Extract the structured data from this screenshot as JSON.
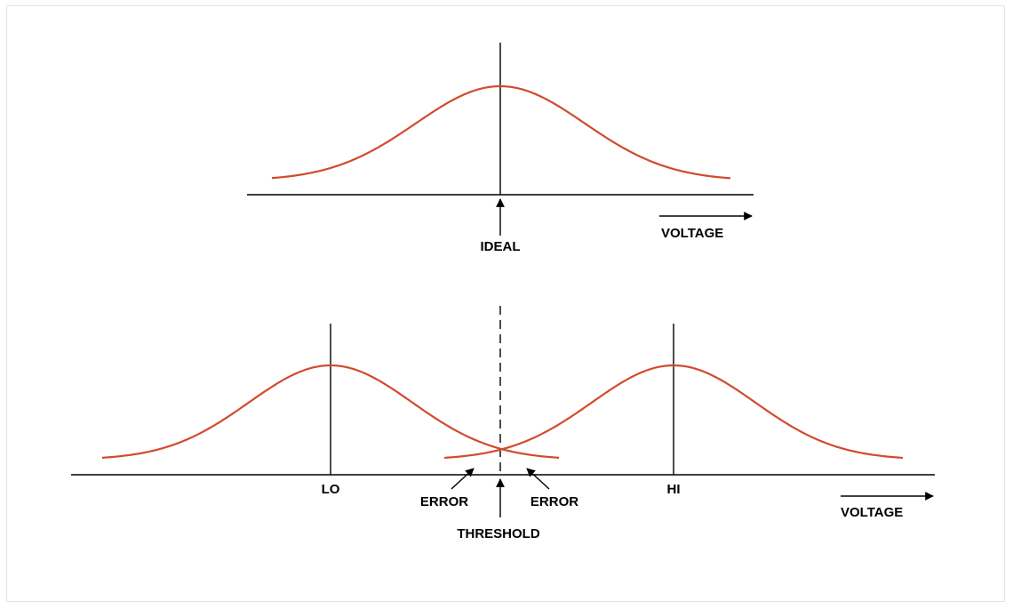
{
  "colors": {
    "curve": "#d24a2c",
    "line": "#000000",
    "frame_border": "#e3e3e3"
  },
  "top_panel": {
    "center_label": "IDEAL",
    "axis_direction_label": "VOLTAGE"
  },
  "bottom_panel": {
    "left_peak_label": "LO",
    "right_peak_label": "HI",
    "threshold_label": "THRESHOLD",
    "error_left_label": "ERROR",
    "error_right_label": "ERROR",
    "axis_direction_label": "VOLTAGE"
  }
}
